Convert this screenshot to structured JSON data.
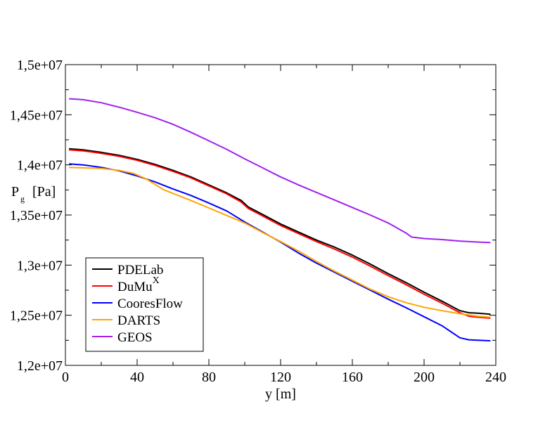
{
  "chart_data": {
    "type": "line",
    "title": "",
    "xlabel": "y [m]",
    "ylabel_main": "P",
    "ylabel_sub": "g",
    "ylabel_unit": "[Pa]",
    "xlim": [
      0,
      240
    ],
    "ylim": [
      12000000,
      15000000
    ],
    "x_ticks": [
      0,
      40,
      80,
      120,
      160,
      200,
      240
    ],
    "x_tick_labels": [
      "0",
      "40",
      "80",
      "120",
      "160",
      "200",
      "240"
    ],
    "y_ticks": [
      12000000,
      12500000,
      13000000,
      13500000,
      14000000,
      14500000,
      15000000
    ],
    "y_tick_labels": [
      "1,2e+07",
      "1,25e+07",
      "1,3e+07",
      "1,35e+07",
      "1,4e+07",
      "1,45e+07",
      "1,5e+07"
    ],
    "grid": false,
    "legend_position": "bottom-left",
    "series": [
      {
        "name": "PDELab",
        "color": "#000000",
        "x": [
          2,
          10,
          20,
          30,
          40,
          50,
          60,
          70,
          80,
          90,
          98,
          102,
          110,
          120,
          130,
          140,
          150,
          160,
          170,
          180,
          190,
          200,
          210,
          220,
          225,
          230,
          237
        ],
        "y": [
          14160000,
          14150000,
          14125000,
          14095000,
          14055000,
          14005000,
          13945000,
          13880000,
          13800000,
          13720000,
          13645000,
          13580000,
          13505000,
          13410000,
          13330000,
          13250000,
          13180000,
          13100000,
          13010000,
          12915000,
          12825000,
          12730000,
          12640000,
          12545000,
          12525000,
          12520000,
          12510000
        ]
      },
      {
        "name": "DuMu",
        "name_superscript": "X",
        "color": "#ff0000",
        "x": [
          2,
          10,
          20,
          30,
          40,
          50,
          60,
          70,
          80,
          90,
          98,
          102,
          110,
          120,
          130,
          140,
          150,
          160,
          170,
          180,
          190,
          200,
          210,
          220,
          225,
          230,
          237
        ],
        "y": [
          14150000,
          14140000,
          14115000,
          14085000,
          14045000,
          13995000,
          13935000,
          13870000,
          13790000,
          13710000,
          13630000,
          13565000,
          13490000,
          13395000,
          13315000,
          13235000,
          13160000,
          13080000,
          12990000,
          12895000,
          12805000,
          12710000,
          12620000,
          12525000,
          12490000,
          12480000,
          12470000
        ]
      },
      {
        "name": "CooresFlow",
        "color": "#0000ff",
        "x": [
          2,
          10,
          20,
          30,
          40,
          50,
          60,
          70,
          80,
          90,
          100,
          110,
          120,
          130,
          140,
          150,
          160,
          170,
          180,
          190,
          200,
          210,
          220,
          225,
          230,
          237
        ],
        "y": [
          14010000,
          14000000,
          13975000,
          13940000,
          13890000,
          13830000,
          13760000,
          13695000,
          13620000,
          13540000,
          13430000,
          13330000,
          13230000,
          13120000,
          13020000,
          12930000,
          12840000,
          12750000,
          12660000,
          12575000,
          12485000,
          12395000,
          12275000,
          12255000,
          12250000,
          12245000
        ]
      },
      {
        "name": "DARTS",
        "color": "#ffa500",
        "x": [
          2,
          10,
          20,
          30,
          38,
          45,
          55,
          70,
          80,
          90,
          100,
          110,
          120,
          130,
          140,
          150,
          160,
          170,
          180,
          190,
          200,
          210,
          220,
          230,
          237
        ],
        "y": [
          13975000,
          13970000,
          13965000,
          13945000,
          13915000,
          13860000,
          13750000,
          13645000,
          13570000,
          13495000,
          13420000,
          13325000,
          13235000,
          13140000,
          13035000,
          12940000,
          12850000,
          12760000,
          12685000,
          12625000,
          12580000,
          12545000,
          12515000,
          12490000,
          12480000
        ]
      },
      {
        "name": "GEOS",
        "color": "#a020f0",
        "x": [
          2,
          10,
          20,
          30,
          40,
          50,
          60,
          70,
          80,
          90,
          100,
          110,
          120,
          130,
          140,
          150,
          160,
          170,
          180,
          190,
          193,
          200,
          210,
          220,
          230,
          237
        ],
        "y": [
          14660000,
          14650000,
          14620000,
          14575000,
          14525000,
          14470000,
          14405000,
          14325000,
          14240000,
          14155000,
          14060000,
          13970000,
          13880000,
          13800000,
          13725000,
          13650000,
          13575000,
          13500000,
          13420000,
          13320000,
          13280000,
          13265000,
          13255000,
          13240000,
          13230000,
          13225000
        ]
      }
    ]
  }
}
